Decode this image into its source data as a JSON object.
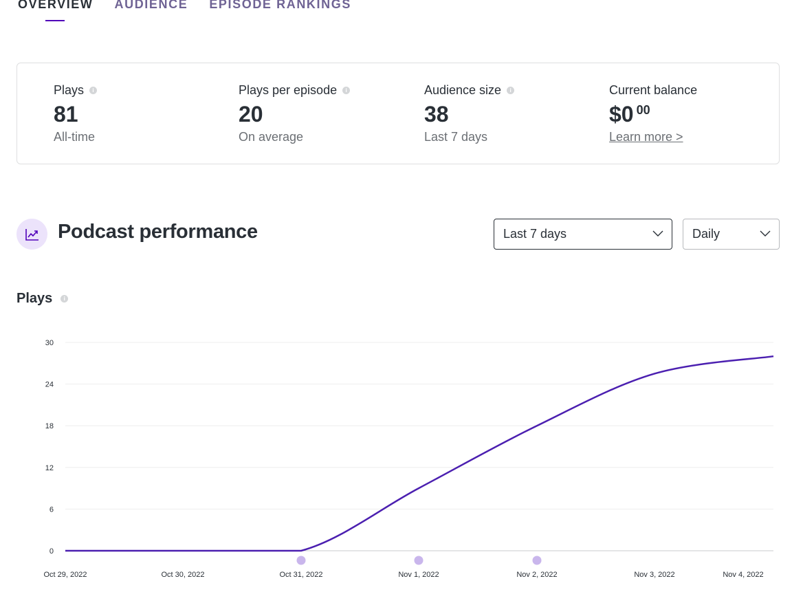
{
  "tabs": [
    {
      "label": "OVERVIEW"
    },
    {
      "label": "AUDIENCE"
    },
    {
      "label": "EPISODE RANKINGS"
    }
  ],
  "stats": {
    "plays": {
      "label": "Plays",
      "value": "81",
      "sub": "All-time"
    },
    "plays_per_episode": {
      "label": "Plays per episode",
      "value": "20",
      "sub": "On average"
    },
    "audience_size": {
      "label": "Audience size",
      "value": "38",
      "sub": "Last 7 days"
    },
    "balance": {
      "label": "Current balance",
      "value": "$0",
      "cents": "00",
      "link": "Learn more >"
    }
  },
  "performance": {
    "title": "Podcast performance",
    "range_select": {
      "value": "Last 7 days"
    },
    "interval_select": {
      "value": "Daily"
    }
  },
  "plays_chart_title": "Plays",
  "colors": {
    "accent": "#5000b9",
    "line": "#4b1fb0",
    "episode_marker": "#c9b6ec"
  },
  "chart_data": {
    "type": "line",
    "title": "Plays",
    "categories": [
      "Oct 29, 2022",
      "Oct 30, 2022",
      "Oct 31, 2022",
      "Nov 1, 2022",
      "Nov 2, 2022",
      "Nov 3, 2022",
      "Nov 4, 2022"
    ],
    "x": [
      "2022-10-29",
      "2022-10-30",
      "2022-10-31",
      "2022-11-01",
      "2022-11-02",
      "2022-11-03",
      "2022-11-04"
    ],
    "series": [
      {
        "values": [
          0,
          0,
          0,
          9,
          18,
          25.5,
          28
        ]
      }
    ],
    "episode_markers": [
      "Oct 31, 2022",
      "Nov 1, 2022",
      "Nov 2, 2022"
    ],
    "yticks": [
      0,
      6,
      12,
      18,
      24,
      30
    ],
    "ylim": [
      0,
      30
    ],
    "grid": true
  }
}
